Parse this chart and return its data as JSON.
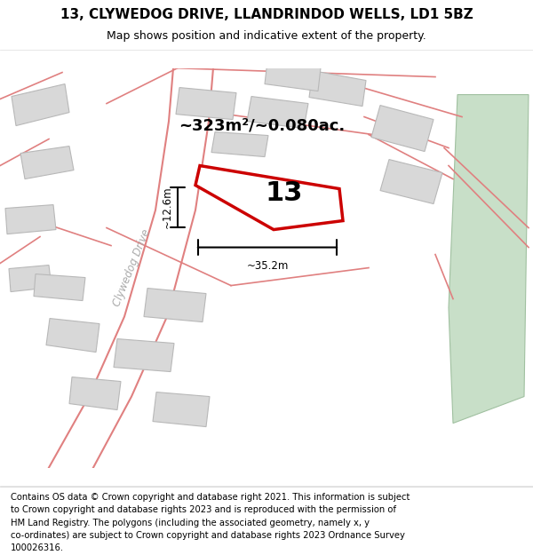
{
  "title": "13, CLYWEDOG DRIVE, LLANDRINDOD WELLS, LD1 5BZ",
  "subtitle": "Map shows position and indicative extent of the property.",
  "footer_lines": [
    "Contains OS data © Crown copyright and database right 2021. This information is subject",
    "to Crown copyright and database rights 2023 and is reproduced with the permission of",
    "HM Land Registry. The polygons (including the associated geometry, namely x, y",
    "co-ordinates) are subject to Crown copyright and database rights 2023 Ordnance Survey",
    "100026316."
  ],
  "map_bg": "#f5f3f0",
  "title_fontsize": 11,
  "subtitle_fontsize": 9,
  "footer_fontsize": 7.2,
  "area_label": "~323m²/~0.080ac.",
  "number_label": "13",
  "dim_h": "~12.6m",
  "dim_w": "~35.2m",
  "road_label": "Clywedog Drive",
  "highlight_color": "#cc0000",
  "highlight_fill": "#ffffff",
  "green_patch_color": "#c8dfc8",
  "building_color": "#d8d8d8",
  "map_line_color": "#e08080"
}
